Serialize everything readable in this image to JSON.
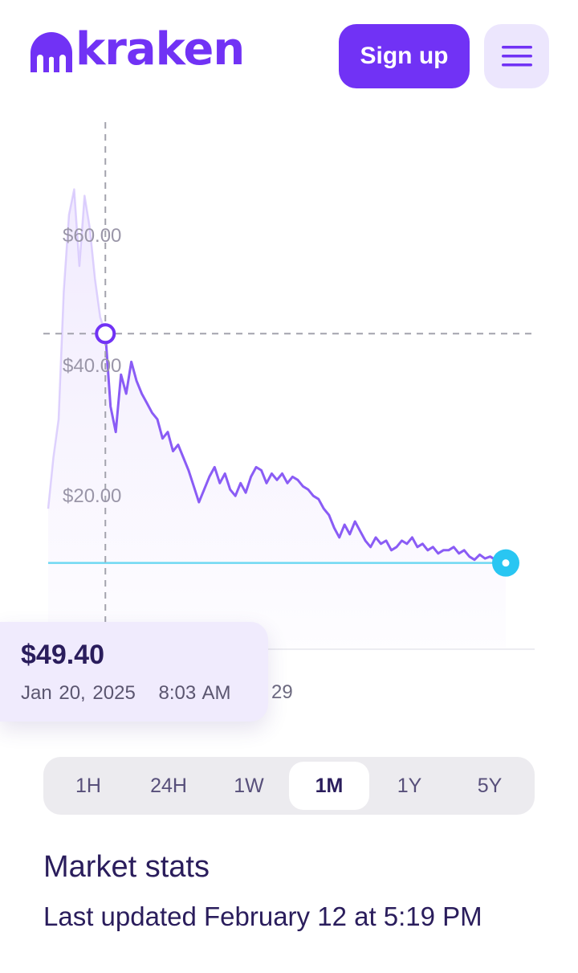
{
  "header": {
    "logo_text": "kraken",
    "logo_icon": "kraken-mark-icon",
    "signup_label": "Sign up",
    "menu_icon": "hamburger-menu-icon"
  },
  "colors": {
    "brand": "#7132f5",
    "brand_light": "#ece6fd",
    "current_marker": "#29c6f2",
    "text_dark": "#2a1d5c"
  },
  "chart_data": {
    "type": "line",
    "series": [
      {
        "values": [
          22.0,
          30.0,
          36.0,
          56.0,
          68.0,
          72.0,
          60.0,
          71.0,
          66.0,
          58.0,
          52.0,
          49.4,
          38.0,
          34.0,
          43.0,
          40.0,
          45.0,
          42.0,
          40.0,
          38.5,
          37.0,
          36.0,
          33.0,
          34.0,
          31.0,
          32.0,
          30.0,
          28.0,
          25.5,
          23.0,
          25.0,
          27.0,
          28.5,
          26.0,
          27.5,
          25.0,
          24.0,
          26.0,
          24.5,
          27.0,
          28.5,
          28.0,
          26.0,
          27.5,
          26.5,
          27.5,
          26.0,
          27.0,
          26.5,
          25.5,
          25.0,
          24.0,
          23.5,
          22.0,
          21.0,
          19.0,
          17.5,
          19.5,
          18.0,
          20.0,
          18.5,
          17.0,
          16.0,
          17.5,
          16.5,
          17.0,
          15.5,
          16.0,
          17.0,
          16.5,
          17.5,
          16.0,
          16.5,
          15.5,
          16.0,
          15.0,
          15.5,
          15.5,
          16.0,
          15.0,
          15.5,
          14.5,
          14.0,
          14.8,
          14.2,
          14.5,
          14.0,
          13.8,
          13.5
        ]
      }
    ],
    "y_ticks": [
      "$60.00",
      "$40.00",
      "$20.00"
    ],
    "x_tick_label": "29",
    "ylim": [
      0,
      80
    ],
    "current_value": 13.5,
    "hover": {
      "price": "$49.40",
      "date": "Jan 20, 2025",
      "time": "8:03 AM",
      "value": 49.4,
      "index": 11
    }
  },
  "time_ranges": [
    "1H",
    "24H",
    "1W",
    "1M",
    "1Y",
    "5Y"
  ],
  "active_range": "1M",
  "market": {
    "title": "Market stats",
    "updated": "Last updated February 12 at 5:19 PM"
  }
}
